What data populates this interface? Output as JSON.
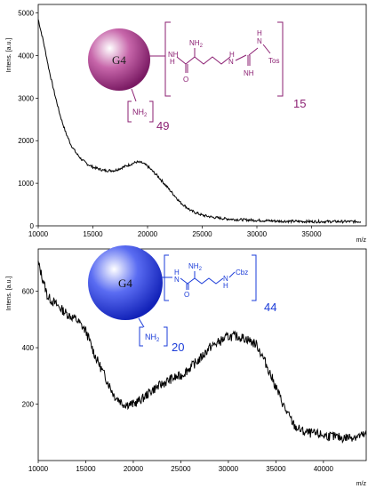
{
  "chart_data": [
    {
      "type": "line",
      "ylabel": "Intens. [a.u.]",
      "xlabel": "m/z",
      "xlim": [
        10000,
        40000
      ],
      "ylim": [
        0,
        5200
      ],
      "xticks": [
        10000,
        15000,
        20000,
        25000,
        30000,
        35000
      ],
      "xtick_labels": [
        "10000",
        "15000",
        "20000",
        "25000",
        "30000",
        "35000"
      ],
      "yticks": [
        0,
        1000,
        2000,
        3000,
        4000,
        5000
      ],
      "ytick_labels": [
        "0",
        "1000",
        "2000",
        "3000",
        "4000",
        "5000"
      ],
      "grid": false,
      "color": "#000000",
      "series": [
        {
          "x": [
            10000,
            10500,
            11000,
            11500,
            12000,
            12500,
            13000,
            13500,
            14000,
            14500,
            15000,
            16000,
            17000,
            18000,
            19000,
            19500,
            20000,
            21000,
            22000,
            23000,
            24000,
            25000,
            26000,
            27000,
            28000,
            30000,
            32000,
            35000,
            38000,
            39500
          ],
          "values": [
            4850,
            4300,
            3650,
            3100,
            2600,
            2200,
            1900,
            1700,
            1550,
            1450,
            1380,
            1300,
            1300,
            1400,
            1500,
            1480,
            1400,
            1150,
            850,
            550,
            350,
            250,
            200,
            170,
            150,
            130,
            110,
            100,
            100,
            100
          ]
        }
      ],
      "annotation": {
        "core_label": "G4",
        "core_color": "#a0287f",
        "amine": "NH",
        "amine_sub": "2",
        "amine_count": "49",
        "arm_count": "15",
        "labels": {
          "nh": "NH",
          "nh2": "NH",
          "nh2_sub": "2",
          "o": "O",
          "h": "H",
          "n": "N",
          "nh_low": "NH",
          "tos": "Tos"
        }
      }
    },
    {
      "type": "line",
      "ylabel": "Intens. [a.u.]",
      "xlabel": "m/z",
      "xlim": [
        10000,
        44500
      ],
      "ylim": [
        0,
        750
      ],
      "xticks": [
        10000,
        15000,
        20000,
        25000,
        30000,
        35000,
        40000
      ],
      "xtick_labels": [
        "10000",
        "15000",
        "20000",
        "25000",
        "30000",
        "35000",
        "40000"
      ],
      "yticks": [
        200,
        400,
        600
      ],
      "ytick_labels": [
        "200",
        "400",
        "600"
      ],
      "grid": false,
      "color": "#000000",
      "series": [
        {
          "x": [
            10000,
            10500,
            11000,
            12000,
            13000,
            14000,
            15000,
            16000,
            17000,
            18000,
            19000,
            20000,
            21000,
            22000,
            23000,
            24000,
            25000,
            26000,
            27000,
            28000,
            29000,
            30000,
            31000,
            32000,
            33000,
            34000,
            35000,
            36000,
            37000,
            38000,
            40000,
            42000,
            44500
          ],
          "values": [
            700,
            640,
            580,
            550,
            520,
            500,
            460,
            370,
            300,
            230,
            200,
            200,
            220,
            250,
            270,
            290,
            300,
            330,
            360,
            400,
            420,
            440,
            440,
            430,
            410,
            340,
            260,
            180,
            120,
            100,
            90,
            80,
            90
          ]
        }
      ],
      "annotation": {
        "core_label": "G4",
        "core_color": "#1a3bd8",
        "amine": "NH",
        "amine_sub": "2",
        "amine_count": "20",
        "arm_count": "44",
        "labels": {
          "nh": "NH",
          "nh2": "NH",
          "nh2_sub": "2",
          "o": "O",
          "h": "H",
          "n": "N",
          "cbz": "Cbz"
        }
      }
    }
  ]
}
